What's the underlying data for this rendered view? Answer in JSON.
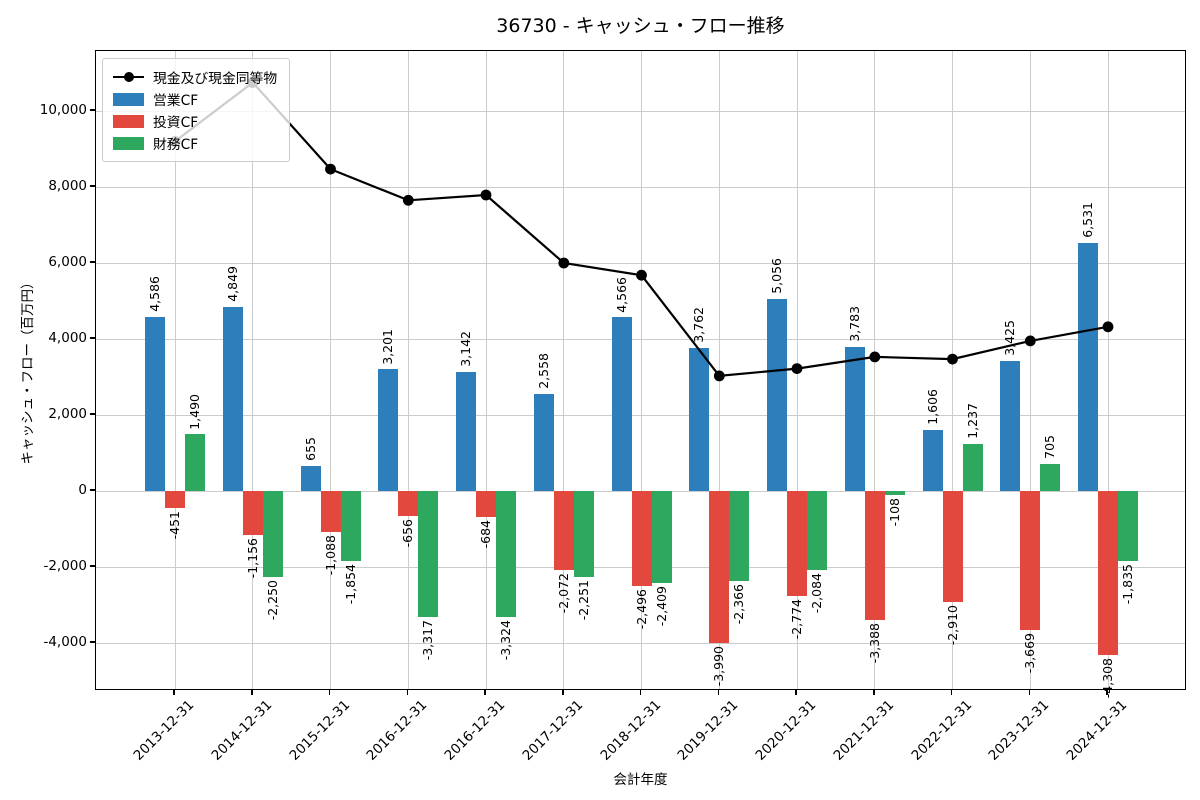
{
  "title": "36730 - キャッシュ・フロー推移",
  "chart_data": {
    "type": "bar",
    "title": "36730 - キャッシュ・フロー推移",
    "xlabel": "会計年度",
    "ylabel": "キャッシュ・フロー（百万円）",
    "grid": true,
    "legend_position": "upper-left",
    "ylim": [
      -5263,
      11579
    ],
    "y_ticks": [
      10000,
      8000,
      6000,
      4000,
      2000,
      0,
      -2000,
      -4000
    ],
    "categories": [
      "2013-12-31",
      "2014-12-31",
      "2015-12-31",
      "2016-12-31",
      "2016-12-31",
      "2017-12-31",
      "2018-12-31",
      "2019-12-31",
      "2020-12-31",
      "2021-12-31",
      "2022-12-31",
      "2023-12-31",
      "2024-12-31"
    ],
    "series": [
      {
        "name": "現金及び現金同等物",
        "type": "line",
        "color": "#000000",
        "values": [
          9200,
          10750,
          8470,
          7650,
          7790,
          6000,
          5680,
          3030,
          3220,
          3530,
          3470,
          3950,
          4320
        ]
      },
      {
        "name": "営業CF",
        "type": "bar",
        "color": "#2e7ebc",
        "values": [
          4586,
          4849,
          655,
          3201,
          3142,
          2558,
          4566,
          3762,
          5056,
          3783,
          1606,
          3425,
          6531
        ]
      },
      {
        "name": "投資CF",
        "type": "bar",
        "color": "#e2483d",
        "values": [
          -451,
          -1156,
          -1088,
          -656,
          -684,
          -2072,
          -2496,
          -3990,
          -2774,
          -3388,
          -2910,
          -3669,
          -4308
        ]
      },
      {
        "name": "財務CF",
        "type": "bar",
        "color": "#2ea75f",
        "values": [
          1490,
          -2250,
          -1854,
          -3317,
          -3324,
          -2251,
          -2409,
          -2366,
          -2084,
          -108,
          1237,
          705,
          -1835
        ]
      }
    ]
  }
}
